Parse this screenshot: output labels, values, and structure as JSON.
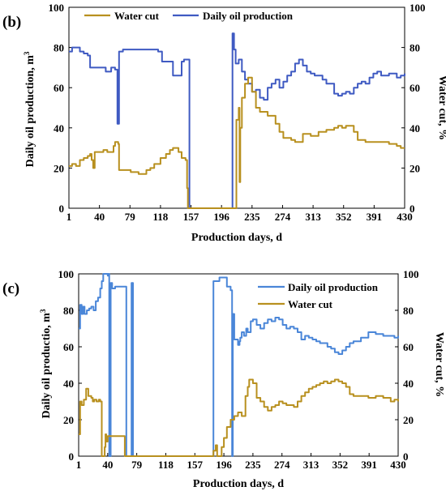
{
  "colors": {
    "oil": "#3f5ac2",
    "oil_c": "#4a86d8",
    "water": "#b8901f",
    "axis": "#000000"
  },
  "chart_data": [
    {
      "panel_label": "(b)",
      "type": "line",
      "xlabel": "Production  days, d",
      "ylabel_left": "Daily oil  production, m",
      "ylabel_left_sup": "3",
      "ylabel_right": "Water cut, %",
      "xlim": [
        1,
        430
      ],
      "ylim_left": [
        0,
        100
      ],
      "ylim_right": [
        0,
        100
      ],
      "x_ticks": [
        "1",
        "40",
        "79",
        "118",
        "157",
        "196",
        "235",
        "274",
        "313",
        "352",
        "391",
        "430"
      ],
      "x_tick_values": [
        1,
        40,
        79,
        118,
        157,
        196,
        235,
        274,
        313,
        352,
        391,
        430
      ],
      "y_ticks_left": [
        "0",
        "20",
        "40",
        "60",
        "80",
        "100"
      ],
      "y_ticks_right": [
        "0",
        "20",
        "40",
        "60",
        "80",
        "100"
      ],
      "legend_position": "top",
      "series": [
        {
          "name": "Daily oil  production",
          "axis": "left",
          "x": [
            1,
            5,
            10,
            15,
            20,
            25,
            28,
            33,
            40,
            48,
            55,
            58,
            60,
            62,
            63,
            65,
            70,
            80,
            90,
            100,
            105,
            110,
            115,
            120,
            130,
            134,
            140,
            145,
            148,
            150,
            152,
            155,
            160,
            170,
            180,
            190,
            200,
            208,
            210,
            212,
            214,
            218,
            222,
            226,
            230,
            235,
            240,
            245,
            250,
            255,
            260,
            265,
            270,
            275,
            280,
            285,
            290,
            295,
            300,
            305,
            310,
            315,
            320,
            325,
            330,
            335,
            340,
            345,
            350,
            355,
            360,
            365,
            370,
            375,
            380,
            385,
            390,
            395,
            400,
            410,
            420,
            425,
            430
          ],
          "values": [
            78,
            80,
            80,
            78,
            77,
            76,
            70,
            70,
            70,
            68,
            70,
            70,
            69,
            69,
            42,
            78,
            79,
            79,
            79,
            79,
            79,
            79,
            78,
            73,
            73,
            66,
            66,
            73,
            74,
            74,
            74,
            0,
            0,
            0,
            0,
            0,
            0,
            0,
            87,
            79,
            72,
            74,
            68,
            64,
            62,
            58,
            59,
            55,
            54,
            60,
            62,
            64,
            60,
            63,
            66,
            68,
            72,
            74,
            71,
            68,
            67,
            66,
            66,
            64,
            62,
            62,
            57,
            56,
            57,
            58,
            57,
            60,
            62,
            63,
            62,
            65,
            67,
            68,
            66,
            67,
            65,
            66,
            67
          ]
        },
        {
          "name": "Water cut",
          "axis": "right",
          "x": [
            1,
            5,
            10,
            15,
            20,
            25,
            28,
            30,
            32,
            34,
            40,
            45,
            50,
            55,
            58,
            60,
            62,
            64,
            65,
            70,
            80,
            90,
            100,
            105,
            110,
            118,
            125,
            130,
            134,
            138,
            141,
            145,
            150,
            152,
            153,
            213,
            215,
            218,
            219,
            220,
            222,
            226,
            230,
            235,
            240,
            245,
            255,
            265,
            270,
            275,
            280,
            285,
            290,
            300,
            305,
            310,
            320,
            330,
            340,
            345,
            350,
            355,
            360,
            365,
            370,
            380,
            390,
            400,
            410,
            420,
            425,
            430
          ],
          "values": [
            21,
            22,
            21,
            24,
            25,
            26,
            27,
            24,
            20,
            28,
            28,
            29,
            28,
            28,
            31,
            33,
            33,
            32,
            19,
            19,
            18,
            17,
            19,
            20,
            22,
            25,
            27,
            29,
            30,
            30,
            28,
            25,
            24,
            10,
            0,
            0,
            44,
            50,
            13,
            40,
            55,
            62,
            65,
            58,
            50,
            48,
            46,
            42,
            38,
            35,
            35,
            34,
            33,
            37,
            37,
            36,
            38,
            39,
            40,
            41,
            40,
            41,
            41,
            38,
            34,
            33,
            33,
            33,
            32,
            31,
            30,
            30
          ]
        }
      ]
    },
    {
      "panel_label": "(c)",
      "type": "line",
      "xlabel": "Production  days, d",
      "ylabel_left": "Daily oil  productio, m",
      "ylabel_left_sup": "3",
      "ylabel_right": "Water cut, %",
      "xlim": [
        1,
        430
      ],
      "ylim_left": [
        0,
        100
      ],
      "ylim_right": [
        0,
        100
      ],
      "x_ticks": [
        "1",
        "40",
        "79",
        "118",
        "157",
        "196",
        "235",
        "274",
        "313",
        "352",
        "391",
        "430"
      ],
      "x_tick_values": [
        1,
        40,
        79,
        118,
        157,
        196,
        235,
        274,
        313,
        352,
        391,
        430
      ],
      "y_ticks_left": [
        "0",
        "20",
        "40",
        "60",
        "80",
        "100"
      ],
      "y_ticks_right": [
        "0",
        "20",
        "40",
        "60",
        "80",
        "100"
      ],
      "legend_position": "top-right",
      "series": [
        {
          "name": "Daily oil  production",
          "axis": "left",
          "x": [
            1,
            3,
            5,
            7,
            9,
            12,
            15,
            18,
            21,
            24,
            27,
            30,
            32,
            34,
            35,
            36,
            38,
            40,
            41,
            42,
            43,
            44,
            46,
            50,
            55,
            60,
            64,
            65,
            66,
            70,
            71,
            72,
            73,
            74,
            75,
            180,
            182,
            190,
            196,
            200,
            205,
            207,
            208,
            210,
            215,
            217,
            218,
            220,
            223,
            226,
            228,
            232,
            235,
            240,
            245,
            250,
            255,
            260,
            265,
            270,
            275,
            280,
            285,
            290,
            295,
            300,
            305,
            310,
            315,
            320,
            325,
            330,
            335,
            340,
            345,
            350,
            355,
            360,
            365,
            370,
            380,
            390,
            400,
            410,
            420,
            425,
            430
          ],
          "values": [
            70,
            83,
            78,
            82,
            78,
            80,
            81,
            82,
            80,
            85,
            87,
            92,
            96,
            100,
            100,
            100,
            100,
            99,
            100,
            0,
            0,
            95,
            92,
            93,
            93,
            93,
            93,
            0,
            0,
            0,
            0,
            95,
            95,
            0,
            0,
            0,
            96,
            98,
            98,
            93,
            91,
            0,
            78,
            64,
            61,
            63,
            65,
            68,
            66,
            70,
            68,
            74,
            75,
            72,
            70,
            73,
            75,
            74,
            76,
            75,
            72,
            70,
            71,
            70,
            68,
            64,
            66,
            65,
            64,
            63,
            62,
            62,
            60,
            59,
            57,
            56,
            58,
            60,
            62,
            63,
            65,
            68,
            67,
            66,
            66,
            65,
            66
          ]
        },
        {
          "name": "Water cut",
          "axis": "right",
          "x": [
            1,
            3,
            5,
            8,
            11,
            14,
            18,
            20,
            22,
            25,
            28,
            30,
            32,
            33,
            35,
            36,
            37,
            38,
            40,
            42,
            44,
            46,
            50,
            55,
            60,
            62,
            63,
            64,
            67,
            70,
            180,
            182,
            185,
            187,
            190,
            193,
            196,
            200,
            205,
            210,
            215,
            220,
            225,
            228,
            230,
            235,
            240,
            245,
            250,
            255,
            260,
            265,
            270,
            275,
            280,
            285,
            290,
            295,
            300,
            305,
            310,
            315,
            320,
            325,
            330,
            335,
            340,
            345,
            350,
            355,
            360,
            365,
            370,
            380,
            390,
            400,
            410,
            420,
            425,
            430
          ],
          "values": [
            12,
            30,
            28,
            31,
            37,
            33,
            32,
            30,
            31,
            30,
            31,
            30,
            0,
            0,
            0,
            5,
            12,
            8,
            11,
            11,
            11,
            11,
            11,
            11,
            11,
            11,
            0,
            0,
            0,
            0,
            0,
            3,
            6,
            0,
            0,
            5,
            10,
            16,
            20,
            22,
            24,
            22,
            33,
            38,
            42,
            40,
            32,
            30,
            27,
            25,
            27,
            28,
            30,
            29,
            28,
            28,
            27,
            30,
            33,
            35,
            37,
            38,
            39,
            40,
            41,
            40,
            41,
            42,
            41,
            40,
            38,
            34,
            33,
            33,
            32,
            33,
            32,
            30,
            31,
            30
          ]
        }
      ]
    }
  ]
}
